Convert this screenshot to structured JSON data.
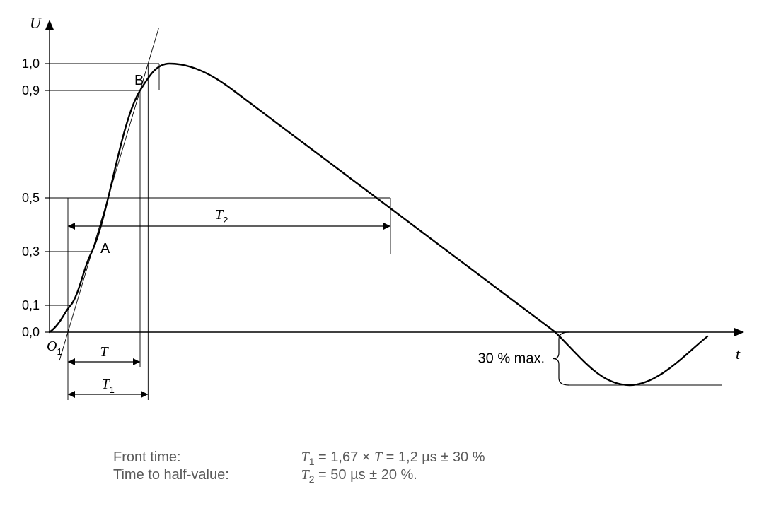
{
  "chart": {
    "type": "line-diagram",
    "background_color": "#ffffff",
    "axis_color": "#000000",
    "curve_color": "#000000",
    "thin_line_color": "#000000",
    "text_color": "#000000",
    "caption_color": "#5a5a5a",
    "y_axis_label": "U",
    "x_axis_label": "t",
    "y_ticks": [
      "0,0",
      "0,1",
      "0,3",
      "0,5",
      "0,9",
      "1,0"
    ],
    "y_tick_values": [
      0.0,
      0.1,
      0.3,
      0.5,
      0.9,
      1.0
    ],
    "point_A": "A",
    "point_B": "B",
    "origin_label": "O",
    "origin_sub": "1",
    "dim_T": "T",
    "dim_T1_label": "T",
    "dim_T1_sub": "1",
    "dim_T2_label": "T",
    "dim_T2_sub": "2",
    "undershoot_label": "30 % max.",
    "curve_width": 2.4,
    "thin_width": 0.9,
    "axis_width": 1.4,
    "arrow_len": 12
  },
  "caption": {
    "row1_label": "Front time:",
    "row1_value_T": "T",
    "row1_value_sub": "1",
    "row1_value_rest": " = 1,67 × ",
    "row1_value_T2": "T",
    "row1_value_rest2": " = 1,2 µs ± 30 %",
    "row2_label": "Time to half-value:",
    "row2_value_T": "T",
    "row2_value_sub": "2",
    "row2_value_rest": " = 50 µs ± 20 %."
  }
}
